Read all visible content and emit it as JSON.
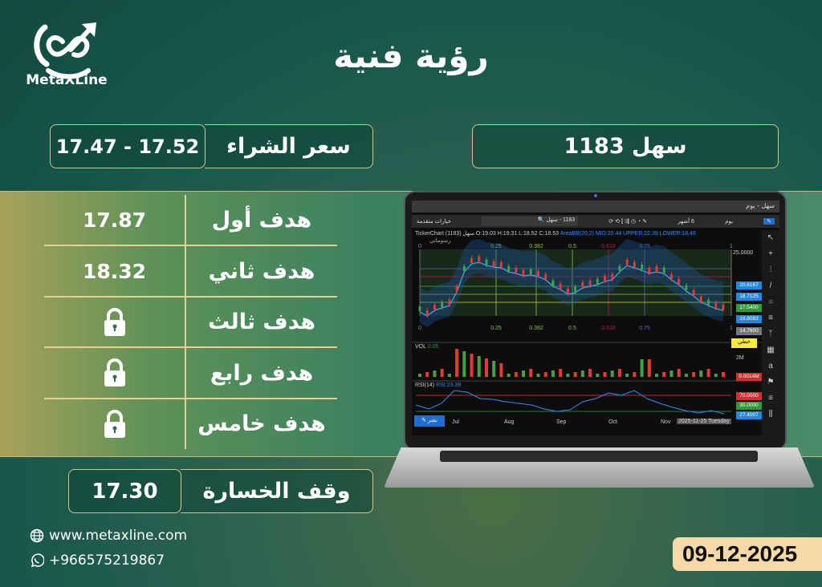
{
  "brand": {
    "name": "MetaXLine",
    "logo": "metaxline-logo"
  },
  "title": "رؤية فنية",
  "stock": {
    "label": "سهل 1183"
  },
  "buy": {
    "label": "سعر الشراء",
    "value": "17.47 - 17.52"
  },
  "targets": [
    {
      "label": "هدف أول",
      "value": "17.87",
      "locked": false
    },
    {
      "label": "هدف ثاني",
      "value": "18.32",
      "locked": false
    },
    {
      "label": "هدف ثالث",
      "locked": true
    },
    {
      "label": "هدف رابع",
      "locked": true
    },
    {
      "label": "هدف خامس",
      "locked": true
    }
  ],
  "stop_loss": {
    "label": "وقف الخسارة",
    "value": "17.30"
  },
  "contact": {
    "website": "www.metaxline.com",
    "phone": "+966575219867",
    "icons": [
      "globe-icon",
      "whatsapp-icon"
    ]
  },
  "date": "09-12-2025",
  "chart_screen": {
    "window_title": "سهل - يوم",
    "advanced_options": "خيارات متقدمة",
    "search_value": "1183 - سهل",
    "period": "6 أشهر",
    "interval": "يوم",
    "ticker": "TickerChart سهل (1183)",
    "ohlc": "O:19.03  H:19.31  L:18.52  C:18.53",
    "bb": "AreaBB(20,2)  MID:20.44  UPPER:22.39  LOWER:18.48",
    "drawings": "رسوماتي",
    "fib_levels": [
      "0",
      "0.25",
      "0.382",
      "0.5",
      "0.618",
      "0.75",
      "1"
    ],
    "price_axis": "25.0000",
    "price_tags": [
      {
        "v": "20.6167",
        "c": "#1e88e5"
      },
      {
        "v": "18.7125",
        "c": "#1e88e5"
      },
      {
        "v": "17.5400",
        "c": "#2e9b3a"
      },
      {
        "v": "16.8083",
        "c": "#1e88e5"
      },
      {
        "v": "14.7600",
        "c": "#777777"
      }
    ],
    "line_tag": "خطي",
    "vol_label": "VOL",
    "vol_value": "0.05",
    "vol_axis": "2M",
    "vol_tag": "0.0014M",
    "rsi_label": "RSI(14)",
    "rsi_value": "RSI:23.39",
    "rsi_tags": [
      {
        "v": "70.0000",
        "c": "#d32f2f"
      },
      {
        "v": "30.0000",
        "c": "#2e9b3a"
      },
      {
        "v": "27.4007",
        "c": "#1e88e5"
      }
    ],
    "months": [
      "Jul",
      "Aug",
      "Sep",
      "Oct",
      "Nov"
    ],
    "cursor_date": "2025-11-25 Tuesday",
    "publish": "نشر"
  }
}
